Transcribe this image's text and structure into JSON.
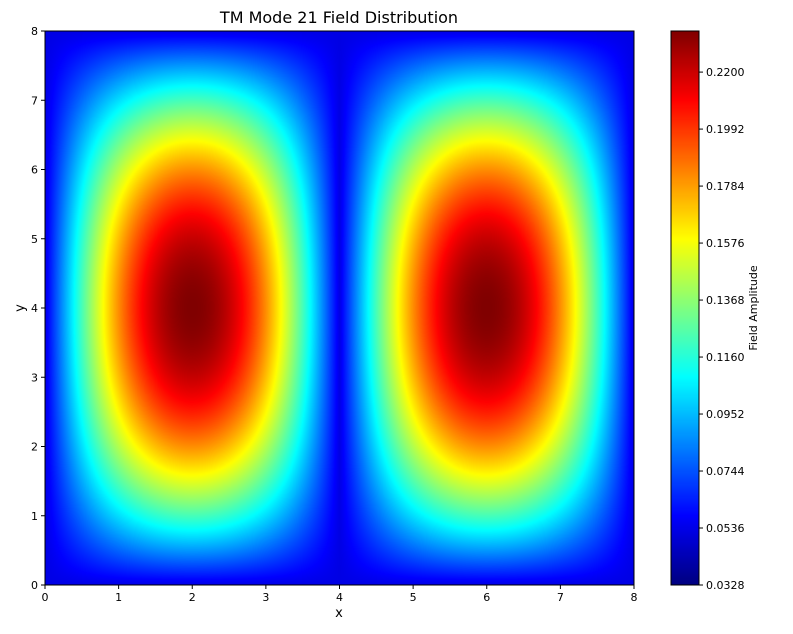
{
  "chart_data": {
    "type": "heatmap",
    "title": "TM Mode 21 Field Distribution",
    "xlabel": "x",
    "ylabel": "y",
    "xlim": [
      0,
      8
    ],
    "ylim": [
      0,
      8
    ],
    "x_ticks": [
      "0",
      "1",
      "2",
      "3",
      "4",
      "5",
      "6",
      "7",
      "8"
    ],
    "y_ticks": [
      "0",
      "1",
      "2",
      "3",
      "4",
      "5",
      "6",
      "7",
      "8"
    ],
    "colormap": "jet",
    "colorbar": {
      "label": "Field Amplitude",
      "range": [
        0.0328,
        0.235
      ],
      "ticks": [
        "0.0328",
        "0.0536",
        "0.0744",
        "0.0952",
        "0.1160",
        "0.1368",
        "0.1576",
        "0.1784",
        "0.1992",
        "0.2200"
      ]
    },
    "field": {
      "description_of_extent": "two elliptical lobes of maximum amplitude",
      "peaks": [
        {
          "x": 1.75,
          "y": 3.85,
          "value": 0.235
        },
        {
          "x": 6.25,
          "y": 3.85,
          "value": 0.228
        }
      ],
      "minimum_value": 0.0328,
      "background_value": 0.05
    }
  }
}
